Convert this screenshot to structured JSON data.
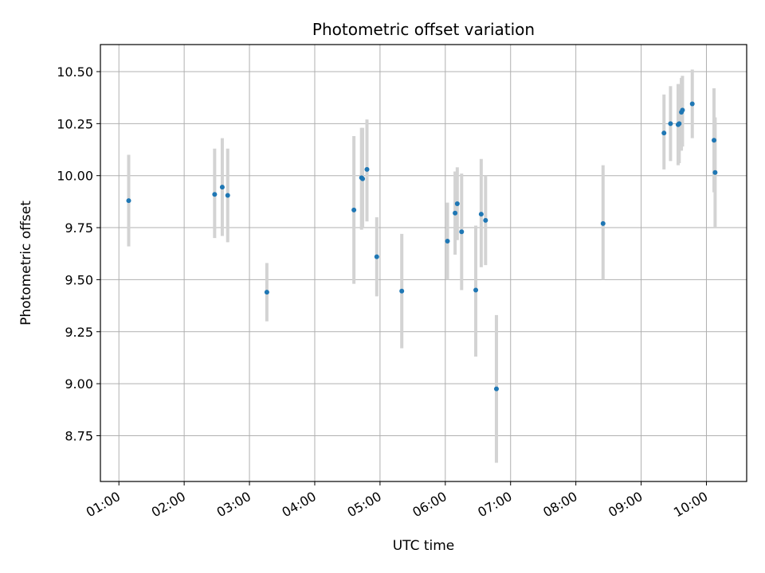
{
  "chart_data": {
    "type": "scatter",
    "title": "Photometric offset variation",
    "xlabel": "UTC time",
    "ylabel": "Photometric offset",
    "x_tick_labels": [
      "01:00",
      "02:00",
      "03:00",
      "04:00",
      "05:00",
      "06:00",
      "07:00",
      "08:00",
      "09:00",
      "10:00"
    ],
    "y_tick_labels": [
      "8.75",
      "9.00",
      "9.25",
      "9.50",
      "9.75",
      "10.00",
      "10.25",
      "10.50"
    ],
    "xlim": [
      "00:43",
      "10:37"
    ],
    "ylim": [
      8.53,
      10.63
    ],
    "grid": true,
    "colors": {
      "point": "#1f77b4",
      "errorbar": "#d3d3d3",
      "grid": "#b0b0b0"
    },
    "points": [
      {
        "time": "01:09",
        "value": 9.88,
        "low": 9.66,
        "high": 10.1
      },
      {
        "time": "02:28",
        "value": 9.91,
        "low": 9.7,
        "high": 10.13
      },
      {
        "time": "02:35",
        "value": 9.945,
        "low": 9.71,
        "high": 10.18
      },
      {
        "time": "02:40",
        "value": 9.905,
        "low": 9.68,
        "high": 10.13
      },
      {
        "time": "03:16",
        "value": 9.44,
        "low": 9.3,
        "high": 9.58
      },
      {
        "time": "04:36",
        "value": 9.835,
        "low": 9.48,
        "high": 10.19
      },
      {
        "time": "04:43",
        "value": 9.99,
        "low": 9.74,
        "high": 10.23
      },
      {
        "time": "04:44",
        "value": 9.985,
        "low": 9.75,
        "high": 10.23
      },
      {
        "time": "04:48",
        "value": 10.03,
        "low": 9.78,
        "high": 10.27
      },
      {
        "time": "04:57",
        "value": 9.61,
        "low": 9.42,
        "high": 9.8
      },
      {
        "time": "05:20",
        "value": 9.445,
        "low": 9.17,
        "high": 9.72
      },
      {
        "time": "06:02",
        "value": 9.685,
        "low": 9.5,
        "high": 9.87
      },
      {
        "time": "06:09",
        "value": 9.82,
        "low": 9.62,
        "high": 10.02
      },
      {
        "time": "06:11",
        "value": 9.865,
        "low": 9.69,
        "high": 10.04
      },
      {
        "time": "06:15",
        "value": 9.73,
        "low": 9.45,
        "high": 10.01
      },
      {
        "time": "06:28",
        "value": 9.45,
        "low": 9.13,
        "high": 9.76
      },
      {
        "time": "06:33",
        "value": 9.815,
        "low": 9.56,
        "high": 10.08
      },
      {
        "time": "06:37",
        "value": 9.785,
        "low": 9.57,
        "high": 10.0
      },
      {
        "time": "06:47",
        "value": 8.975,
        "low": 8.62,
        "high": 9.33
      },
      {
        "time": "08:25",
        "value": 9.77,
        "low": 9.5,
        "high": 10.05
      },
      {
        "time": "09:21",
        "value": 10.205,
        "low": 10.03,
        "high": 10.39
      },
      {
        "time": "09:27",
        "value": 10.25,
        "low": 10.07,
        "high": 10.43
      },
      {
        "time": "09:34",
        "value": 10.245,
        "low": 10.05,
        "high": 10.44
      },
      {
        "time": "09:35",
        "value": 10.25,
        "low": 10.06,
        "high": 10.44
      },
      {
        "time": "09:37",
        "value": 10.305,
        "low": 10.12,
        "high": 10.47
      },
      {
        "time": "09:38",
        "value": 10.315,
        "low": 10.14,
        "high": 10.48
      },
      {
        "time": "09:47",
        "value": 10.345,
        "low": 10.18,
        "high": 10.51
      },
      {
        "time": "10:07",
        "value": 10.17,
        "low": 9.92,
        "high": 10.42
      },
      {
        "time": "10:08",
        "value": 10.015,
        "low": 9.75,
        "high": 10.28
      }
    ]
  }
}
